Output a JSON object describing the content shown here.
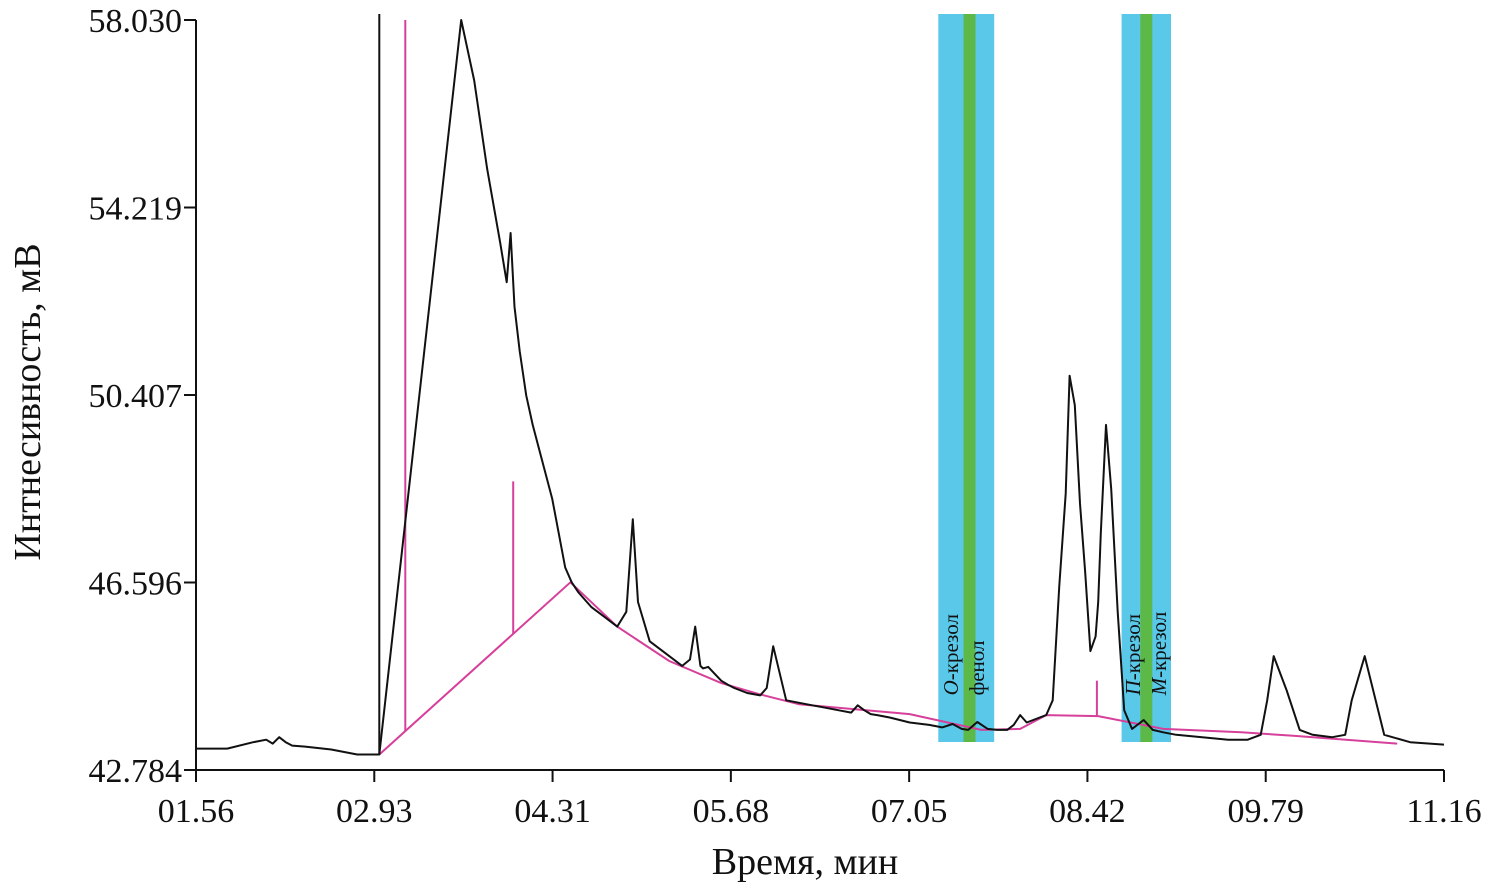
{
  "chart_data": {
    "type": "line",
    "xlabel": "Время, мин",
    "ylabel": "Интнесивность, мВ",
    "x_ticks": [
      "01.56",
      "02.93",
      "04.31",
      "05.68",
      "07.05",
      "08.42",
      "09.79",
      "11.16"
    ],
    "y_ticks": [
      "58.030",
      "54.219",
      "50.407",
      "46.596",
      "42.784"
    ],
    "xlim": [
      1.56,
      11.16
    ],
    "ylim": [
      42.784,
      58.03
    ],
    "colors": {
      "signal": "#111111",
      "baseline": "#d6409a",
      "band": "#5ac8e8",
      "marker": "#5cb847"
    },
    "highlight_bands": [
      {
        "x_start": 7.27,
        "x_end": 7.7,
        "marker_x": 7.51
      },
      {
        "x_start": 8.68,
        "x_end": 9.06,
        "marker_x": 8.87
      }
    ],
    "annotations": [
      {
        "italic": "О",
        "text": "-крезол",
        "x": 7.42,
        "y": 44.3
      },
      {
        "italic": "",
        "text": "фенол",
        "x": 7.62,
        "y": 44.3
      },
      {
        "italic": "П",
        "text": "-крезол",
        "x": 8.82,
        "y": 44.3
      },
      {
        "italic": "М",
        "text": "-крезол",
        "x": 9.02,
        "y": 44.3
      }
    ],
    "signal": {
      "x": [
        1.56,
        1.8,
        2.0,
        2.1,
        2.15,
        2.2,
        2.25,
        2.3,
        2.4,
        2.6,
        2.8,
        2.9,
        2.97,
        3.6,
        3.7,
        3.8,
        3.9,
        3.95,
        3.98,
        4.01,
        4.05,
        4.1,
        4.15,
        4.2,
        4.25,
        4.3,
        4.35,
        4.4,
        4.45,
        4.5,
        4.6,
        4.7,
        4.8,
        4.87,
        4.92,
        4.96,
        5.05,
        5.2,
        5.3,
        5.36,
        5.4,
        5.44,
        5.46,
        5.5,
        5.6,
        5.65,
        5.7,
        5.8,
        5.9,
        5.95,
        6.0,
        6.1,
        6.3,
        6.4,
        6.5,
        6.6,
        6.65,
        6.7,
        6.75,
        6.8,
        6.9,
        7.05,
        7.2,
        7.3,
        7.38,
        7.45,
        7.5,
        7.57,
        7.65,
        7.72,
        7.8,
        7.85,
        7.9,
        7.95,
        8.0,
        8.1,
        8.15,
        8.2,
        8.25,
        8.28,
        8.32,
        8.36,
        8.4,
        8.44,
        8.48,
        8.5,
        8.52,
        8.56,
        8.6,
        8.65,
        8.7,
        8.76,
        8.85,
        8.92,
        9.0,
        9.1,
        9.3,
        9.5,
        9.65,
        9.75,
        9.8,
        9.85,
        9.95,
        10.05,
        10.15,
        10.3,
        10.4,
        10.45,
        10.55,
        10.7,
        10.9,
        11.16
      ],
      "y": [
        43.22,
        43.22,
        43.35,
        43.4,
        43.32,
        43.45,
        43.35,
        43.28,
        43.26,
        43.2,
        43.1,
        43.1,
        43.1,
        58.03,
        56.8,
        55.0,
        53.5,
        52.7,
        53.7,
        52.2,
        51.3,
        50.4,
        49.8,
        49.3,
        48.8,
        48.3,
        47.6,
        46.9,
        46.6,
        46.4,
        46.1,
        45.9,
        45.7,
        46.0,
        47.88,
        46.2,
        45.4,
        45.1,
        44.9,
        45.03,
        45.7,
        44.9,
        44.85,
        44.88,
        44.6,
        44.52,
        44.45,
        44.35,
        44.3,
        44.45,
        45.3,
        44.2,
        44.1,
        44.05,
        44.0,
        43.95,
        44.1,
        44.0,
        43.92,
        43.9,
        43.85,
        43.75,
        43.7,
        43.65,
        43.72,
        43.62,
        43.6,
        43.76,
        43.62,
        43.6,
        43.6,
        43.7,
        43.9,
        43.75,
        43.8,
        43.9,
        44.2,
        46.5,
        48.4,
        50.8,
        50.2,
        48.2,
        46.8,
        45.2,
        45.5,
        46.2,
        47.6,
        49.8,
        48.5,
        46.0,
        44.0,
        43.62,
        43.8,
        43.6,
        43.55,
        43.5,
        43.45,
        43.4,
        43.4,
        43.5,
        44.2,
        45.1,
        44.4,
        43.6,
        43.5,
        43.45,
        43.5,
        44.2,
        45.1,
        43.5,
        43.35,
        43.3
      ]
    },
    "baseline": {
      "x": [
        2.97,
        4.44,
        4.8,
        5.2,
        5.6,
        5.9,
        6.2,
        7.05,
        7.6,
        7.9,
        8.1,
        8.5,
        9.0,
        9.6,
        10.0,
        10.8
      ],
      "y": [
        43.1,
        46.6,
        45.7,
        45.0,
        44.55,
        44.32,
        44.12,
        43.92,
        43.6,
        43.62,
        43.9,
        43.88,
        43.62,
        43.55,
        43.48,
        43.32
      ]
    },
    "drop_lines": [
      {
        "x": 3.17,
        "y": 58.03
      },
      {
        "x": 4.0,
        "y": 48.65
      },
      {
        "x": 8.49,
        "y": 44.6
      }
    ]
  }
}
